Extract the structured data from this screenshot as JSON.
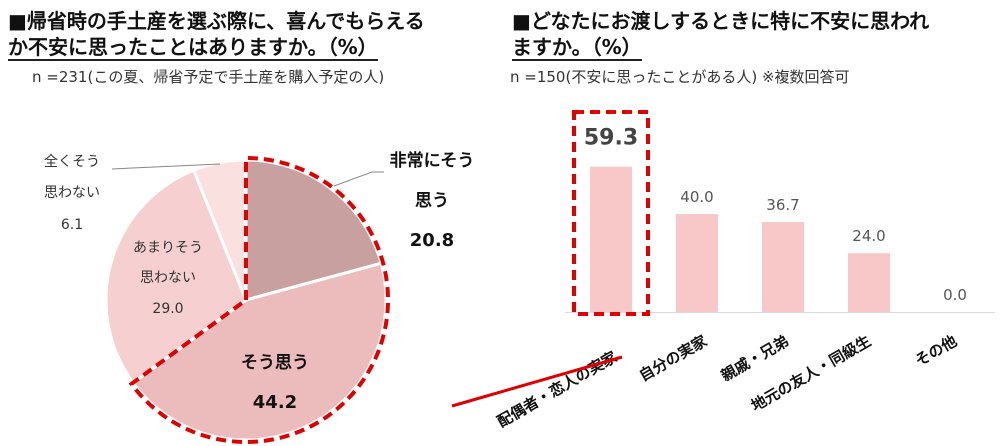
{
  "left": {
    "title_line1": "■帰省時の手土産を選ぶ際に、喜んでもらえる",
    "title_line2": "か不安に思ったことはありますか。（%）",
    "note": "n =231(この夏、帰省予定で手土産を購入予定の人)"
  },
  "right": {
    "title_line1": "■どなたにお渡しするときに特に不安に思われ",
    "title_line2": "ますか。（%）",
    "note": "n =150(不安に思ったことがある人) ※複数回答可"
  },
  "colors": {
    "pie": [
      "#c9a0a0",
      "#ecbcbc",
      "#f6d0d0",
      "#fbe0e0"
    ],
    "bar": "#f8c8c8",
    "highlight": "#e00000",
    "text": "#333333"
  },
  "chart_data": [
    {
      "type": "pie",
      "slices": [
        {
          "label_lines": [
            "非常にそう",
            "思う"
          ],
          "value": 20.8,
          "value_text": "20.8"
        },
        {
          "label_lines": [
            "そう思う"
          ],
          "value": 44.2,
          "value_text": "44.2"
        },
        {
          "label_lines": [
            "あまりそう",
            "思わない"
          ],
          "value": 29.0,
          "value_text": "29.0"
        },
        {
          "label_lines": [
            "全くそう",
            "思わない"
          ],
          "value": 6.1,
          "value_text": "6.1"
        }
      ],
      "highlighted": [
        "非常にそう思う",
        "そう思う"
      ]
    },
    {
      "type": "bar",
      "categories": [
        "配偶者・恋人の実家",
        "自分の実家",
        "親戚・兄弟",
        "地元の友人・同級生",
        "その他"
      ],
      "values": [
        59.3,
        40.0,
        36.7,
        24.0,
        0.0
      ],
      "value_labels": [
        "59.3",
        "40.0",
        "36.7",
        "24.0",
        "0.0"
      ],
      "ylim": [
        0,
        100
      ],
      "highlighted": "配偶者・恋人の実家"
    }
  ]
}
